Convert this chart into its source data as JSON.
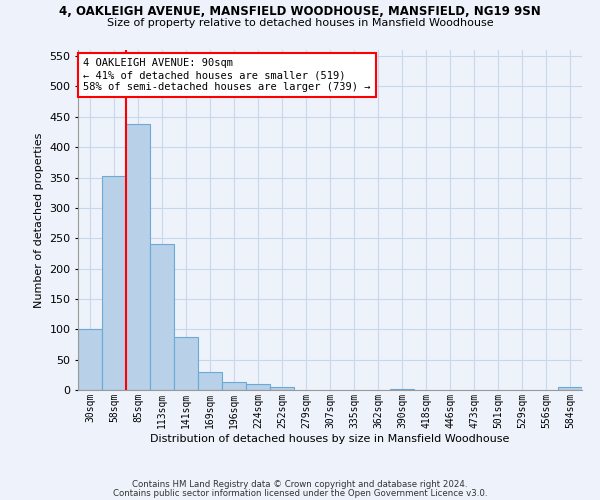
{
  "title": "4, OAKLEIGH AVENUE, MANSFIELD WOODHOUSE, MANSFIELD, NG19 9SN",
  "subtitle": "Size of property relative to detached houses in Mansfield Woodhouse",
  "xlabel": "Distribution of detached houses by size in Mansfield Woodhouse",
  "ylabel": "Number of detached properties",
  "footer_line1": "Contains HM Land Registry data © Crown copyright and database right 2024.",
  "footer_line2": "Contains public sector information licensed under the Open Government Licence v3.0.",
  "categories": [
    "30sqm",
    "58sqm",
    "85sqm",
    "113sqm",
    "141sqm",
    "169sqm",
    "196sqm",
    "224sqm",
    "252sqm",
    "279sqm",
    "307sqm",
    "335sqm",
    "362sqm",
    "390sqm",
    "418sqm",
    "446sqm",
    "473sqm",
    "501sqm",
    "529sqm",
    "556sqm",
    "584sqm"
  ],
  "values": [
    100,
    352,
    438,
    240,
    88,
    30,
    14,
    10,
    5,
    0,
    0,
    0,
    0,
    2,
    0,
    0,
    0,
    0,
    0,
    0,
    5
  ],
  "bar_color": "#b8d0e8",
  "bar_edge_color": "#6aaad4",
  "grid_color": "#c8d8ec",
  "subject_line_color": "red",
  "annotation_text": "4 OAKLEIGH AVENUE: 90sqm\n← 41% of detached houses are smaller (519)\n58% of semi-detached houses are larger (739) →",
  "annotation_box_color": "white",
  "annotation_box_edge": "red",
  "ylim": [
    0,
    560
  ],
  "yticks": [
    0,
    50,
    100,
    150,
    200,
    250,
    300,
    350,
    400,
    450,
    500,
    550
  ],
  "background_color": "#eef2fa"
}
